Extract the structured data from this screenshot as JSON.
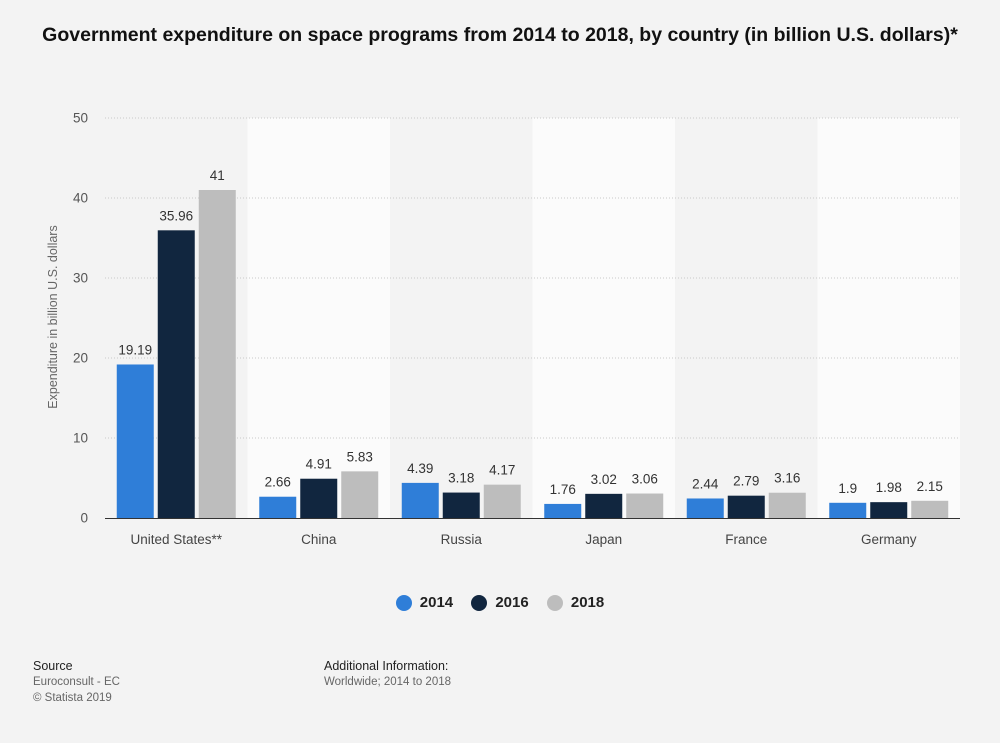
{
  "chart_data": {
    "type": "bar",
    "title": "Government expenditure on space programs from 2014 to 2018, by country (in billion U.S. dollars)*",
    "ylabel": "Expenditure in billion U.S. dollars",
    "xlabel": "",
    "ylim": [
      0,
      50
    ],
    "yticks": [
      0,
      10,
      20,
      30,
      40,
      50
    ],
    "categories": [
      "United States**",
      "China",
      "Russia",
      "Japan",
      "France",
      "Germany"
    ],
    "series": [
      {
        "name": "2014",
        "color": "#2f7ed8",
        "values": [
          19.19,
          2.66,
          4.39,
          1.76,
          2.44,
          1.9
        ]
      },
      {
        "name": "2016",
        "color": "#11263f",
        "values": [
          35.96,
          4.91,
          3.18,
          3.02,
          2.79,
          1.98
        ]
      },
      {
        "name": "2018",
        "color": "#bdbdbd",
        "values": [
          41,
          5.83,
          4.17,
          3.06,
          3.16,
          2.15
        ]
      }
    ],
    "grid": true,
    "legend_position": "bottom"
  },
  "footer": {
    "source_label": "Source",
    "source_lines": [
      "Euroconsult - EC",
      "© Statista 2019"
    ],
    "info_label": "Additional Information:",
    "info_lines": [
      "Worldwide; 2014 to 2018"
    ]
  }
}
